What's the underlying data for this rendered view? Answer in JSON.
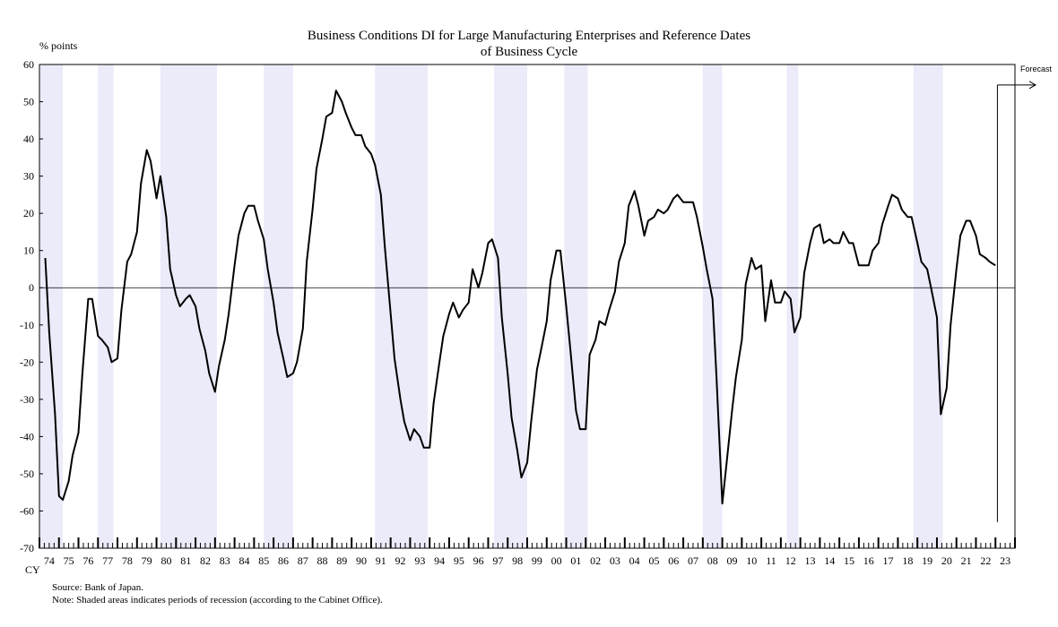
{
  "chart_data": {
    "type": "line",
    "title": "Business Conditions DI for Large Manufacturing Enterprises and Reference Dates",
    "subtitle": "of Business Cycle",
    "ylabel": "% points",
    "xlabel": "CY",
    "ylim": [
      -70,
      60
    ],
    "yticks": [
      "60",
      "50",
      "40",
      "30",
      "20",
      "10",
      "0",
      "-10",
      "-20",
      "-30",
      "-40",
      "-50",
      "-60",
      "-70"
    ],
    "xlim": [
      1974.0,
      2024.0
    ],
    "xticks": [
      "74",
      "75",
      "76",
      "77",
      "78",
      "79",
      "80",
      "81",
      "82",
      "83",
      "84",
      "85",
      "86",
      "87",
      "88",
      "89",
      "90",
      "91",
      "92",
      "93",
      "94",
      "95",
      "96",
      "97",
      "98",
      "99",
      "00",
      "01",
      "02",
      "03",
      "04",
      "05",
      "06",
      "07",
      "08",
      "09",
      "10",
      "11",
      "12",
      "13",
      "14",
      "15",
      "16",
      "17",
      "18",
      "19",
      "20",
      "21",
      "22",
      "23"
    ],
    "forecast_label": "Forecast",
    "source": "Source:  Bank of Japan.",
    "note": "Note: Shaded areas indicates periods of recession (according  to the Cabinet Office).",
    "recessions": [
      [
        1974.0,
        1975.2
      ],
      [
        1977.0,
        1977.8
      ],
      [
        1980.2,
        1983.1
      ],
      [
        1985.5,
        1987.0
      ],
      [
        1991.2,
        1993.9
      ],
      [
        1997.3,
        1999.0
      ],
      [
        2000.9,
        2002.1
      ],
      [
        2008.0,
        2009.0
      ],
      [
        2012.3,
        2012.9
      ],
      [
        2018.8,
        2020.3
      ]
    ],
    "series": [
      {
        "name": "",
        "points": [
          [
            1974.3,
            8
          ],
          [
            1974.5,
            -12
          ],
          [
            1974.8,
            -34
          ],
          [
            1975.0,
            -56
          ],
          [
            1975.2,
            -57
          ],
          [
            1975.5,
            -52
          ],
          [
            1975.7,
            -45
          ],
          [
            1976.0,
            -39
          ],
          [
            1976.2,
            -23
          ],
          [
            1976.5,
            -3
          ],
          [
            1976.7,
            -3
          ],
          [
            1977.0,
            -13
          ],
          [
            1977.2,
            -14
          ],
          [
            1977.5,
            -16
          ],
          [
            1977.7,
            -20
          ],
          [
            1978.0,
            -19
          ],
          [
            1978.2,
            -6
          ],
          [
            1978.5,
            7
          ],
          [
            1978.7,
            9
          ],
          [
            1979.0,
            15
          ],
          [
            1979.2,
            28
          ],
          [
            1979.5,
            37
          ],
          [
            1979.7,
            34
          ],
          [
            1980.0,
            24
          ],
          [
            1980.2,
            30
          ],
          [
            1980.5,
            19
          ],
          [
            1980.7,
            5
          ],
          [
            1981.0,
            -2
          ],
          [
            1981.2,
            -5
          ],
          [
            1981.5,
            -3
          ],
          [
            1981.7,
            -2
          ],
          [
            1982.0,
            -5
          ],
          [
            1982.2,
            -11
          ],
          [
            1982.5,
            -17
          ],
          [
            1982.7,
            -23
          ],
          [
            1983.0,
            -28
          ],
          [
            1983.2,
            -21
          ],
          [
            1983.5,
            -14
          ],
          [
            1983.7,
            -7
          ],
          [
            1984.0,
            6
          ],
          [
            1984.2,
            14
          ],
          [
            1984.5,
            20
          ],
          [
            1984.7,
            22
          ],
          [
            1985.0,
            22
          ],
          [
            1985.2,
            18
          ],
          [
            1985.5,
            13
          ],
          [
            1985.7,
            5
          ],
          [
            1986.0,
            -4
          ],
          [
            1986.2,
            -12
          ],
          [
            1986.5,
            -19
          ],
          [
            1986.7,
            -24
          ],
          [
            1987.0,
            -23
          ],
          [
            1987.2,
            -20
          ],
          [
            1987.5,
            -11
          ],
          [
            1987.7,
            7
          ],
          [
            1988.0,
            21
          ],
          [
            1988.2,
            32
          ],
          [
            1988.5,
            40
          ],
          [
            1988.7,
            46
          ],
          [
            1989.0,
            47
          ],
          [
            1989.2,
            53
          ],
          [
            1989.5,
            50
          ],
          [
            1989.7,
            47
          ],
          [
            1990.0,
            43
          ],
          [
            1990.2,
            41
          ],
          [
            1990.5,
            41
          ],
          [
            1990.7,
            38
          ],
          [
            1991.0,
            36
          ],
          [
            1991.2,
            33
          ],
          [
            1991.5,
            25
          ],
          [
            1991.7,
            11
          ],
          [
            1992.0,
            -7
          ],
          [
            1992.2,
            -19
          ],
          [
            1992.5,
            -30
          ],
          [
            1992.7,
            -36
          ],
          [
            1993.0,
            -41
          ],
          [
            1993.2,
            -38
          ],
          [
            1993.5,
            -40
          ],
          [
            1993.7,
            -43
          ],
          [
            1994.0,
            -43
          ],
          [
            1994.2,
            -31
          ],
          [
            1994.5,
            -20
          ],
          [
            1994.7,
            -13
          ],
          [
            1995.0,
            -7
          ],
          [
            1995.2,
            -4
          ],
          [
            1995.5,
            -8
          ],
          [
            1995.7,
            -6
          ],
          [
            1996.0,
            -4
          ],
          [
            1996.2,
            5
          ],
          [
            1996.5,
            0
          ],
          [
            1996.7,
            4
          ],
          [
            1997.0,
            12
          ],
          [
            1997.2,
            13
          ],
          [
            1997.5,
            8
          ],
          [
            1997.7,
            -8
          ],
          [
            1998.0,
            -23
          ],
          [
            1998.2,
            -35
          ],
          [
            1998.5,
            -44
          ],
          [
            1998.7,
            -51
          ],
          [
            1999.0,
            -47
          ],
          [
            1999.2,
            -36
          ],
          [
            1999.5,
            -22
          ],
          [
            1999.7,
            -17
          ],
          [
            2000.0,
            -9
          ],
          [
            2000.2,
            2
          ],
          [
            2000.5,
            10
          ],
          [
            2000.7,
            10
          ],
          [
            2001.0,
            -5
          ],
          [
            2001.2,
            -16
          ],
          [
            2001.5,
            -33
          ],
          [
            2001.7,
            -38
          ],
          [
            2002.0,
            -38
          ],
          [
            2002.2,
            -18
          ],
          [
            2002.5,
            -14
          ],
          [
            2002.7,
            -9
          ],
          [
            2003.0,
            -10
          ],
          [
            2003.2,
            -6
          ],
          [
            2003.5,
            -1
          ],
          [
            2003.7,
            7
          ],
          [
            2004.0,
            12
          ],
          [
            2004.2,
            22
          ],
          [
            2004.5,
            26
          ],
          [
            2004.7,
            22
          ],
          [
            2005.0,
            14
          ],
          [
            2005.2,
            18
          ],
          [
            2005.5,
            19
          ],
          [
            2005.7,
            21
          ],
          [
            2006.0,
            20
          ],
          [
            2006.2,
            21
          ],
          [
            2006.5,
            24
          ],
          [
            2006.7,
            25
          ],
          [
            2007.0,
            23
          ],
          [
            2007.2,
            23
          ],
          [
            2007.5,
            23
          ],
          [
            2007.7,
            19
          ],
          [
            2008.0,
            11
          ],
          [
            2008.2,
            5
          ],
          [
            2008.5,
            -3
          ],
          [
            2008.7,
            -24
          ],
          [
            2009.0,
            -58
          ],
          [
            2009.2,
            -48
          ],
          [
            2009.5,
            -33
          ],
          [
            2009.7,
            -24
          ],
          [
            2010.0,
            -14
          ],
          [
            2010.2,
            1
          ],
          [
            2010.5,
            8
          ],
          [
            2010.7,
            5
          ],
          [
            2011.0,
            6
          ],
          [
            2011.2,
            -9
          ],
          [
            2011.5,
            2
          ],
          [
            2011.7,
            -4
          ],
          [
            2012.0,
            -4
          ],
          [
            2012.2,
            -1
          ],
          [
            2012.5,
            -3
          ],
          [
            2012.7,
            -12
          ],
          [
            2013.0,
            -8
          ],
          [
            2013.2,
            4
          ],
          [
            2013.5,
            12
          ],
          [
            2013.7,
            16
          ],
          [
            2014.0,
            17
          ],
          [
            2014.2,
            12
          ],
          [
            2014.5,
            13
          ],
          [
            2014.7,
            12
          ],
          [
            2015.0,
            12
          ],
          [
            2015.2,
            15
          ],
          [
            2015.5,
            12
          ],
          [
            2015.7,
            12
          ],
          [
            2016.0,
            6
          ],
          [
            2016.2,
            6
          ],
          [
            2016.5,
            6
          ],
          [
            2016.7,
            10
          ],
          [
            2017.0,
            12
          ],
          [
            2017.2,
            17
          ],
          [
            2017.5,
            22
          ],
          [
            2017.7,
            25
          ],
          [
            2018.0,
            24
          ],
          [
            2018.2,
            21
          ],
          [
            2018.5,
            19
          ],
          [
            2018.7,
            19
          ],
          [
            2019.0,
            12
          ],
          [
            2019.2,
            7
          ],
          [
            2019.5,
            5
          ],
          [
            2019.7,
            0
          ],
          [
            2020.0,
            -8
          ],
          [
            2020.2,
            -34
          ],
          [
            2020.5,
            -27
          ],
          [
            2020.7,
            -10
          ],
          [
            2021.0,
            5
          ],
          [
            2021.2,
            14
          ],
          [
            2021.5,
            18
          ],
          [
            2021.7,
            18
          ],
          [
            2022.0,
            14
          ],
          [
            2022.2,
            9
          ],
          [
            2022.5,
            8
          ],
          [
            2022.7,
            7
          ],
          [
            2023.0,
            6
          ]
        ]
      }
    ]
  }
}
